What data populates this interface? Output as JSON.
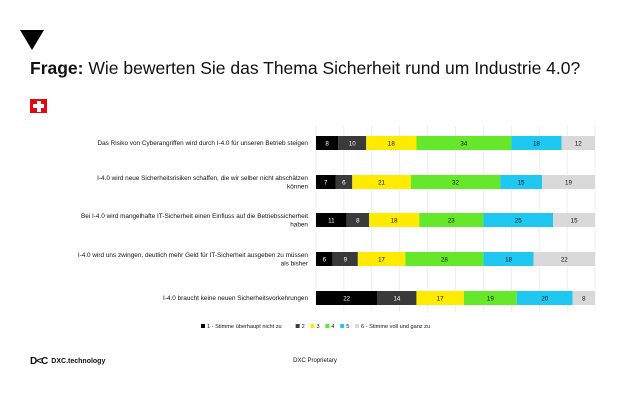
{
  "header": {
    "question_label": "Frage:",
    "question_text": "Wie bewerten Sie das Thema Sicherheit rund um Industrie 4.0?"
  },
  "footer": {
    "logo_mark": "D<C",
    "brand": "DXC.technology",
    "center_text": "DXC Proprietary"
  },
  "icons": {
    "marker": "down-triangle-icon",
    "flag": "swiss-flag-icon"
  },
  "chart_data": {
    "type": "bar",
    "orientation": "horizontal",
    "stacked": true,
    "normalized": true,
    "xlim": [
      0,
      100
    ],
    "categories": [
      [
        "Das Risiko von Cyberangriffen wird durch I-4.0 für unseren Betrieb steigen"
      ],
      [
        "I-4.0 wird neue Sicherheitsrisiken schaffen, die wir selber nicht abschätzen",
        "können"
      ],
      [
        "Bei I-4.0 wird mangelhafte IT-Sicherheit einen Einfluss auf die Betriebssicherheit",
        "haben"
      ],
      [
        "I-4.0 wird uns zwingen, deutlich mehr Geld für IT-Sicherheit ausgeben zu müssen",
        "als bisher"
      ],
      [
        "I-4.0 braucht keine neuen Sicherheitsvorkehrungen"
      ]
    ],
    "series": [
      {
        "name": "1 - Stimme überhaupt nicht zu",
        "color": "#000000",
        "label_color": "#ffffff",
        "values": [
          8,
          7,
          11,
          6,
          22
        ]
      },
      {
        "name": "2",
        "color": "#3a3a3a",
        "label_color": "#ffffff",
        "values": [
          10,
          6,
          8,
          9,
          14
        ]
      },
      {
        "name": "3",
        "color": "#ffeb00",
        "label_color": "#111111",
        "values": [
          18,
          21,
          18,
          17,
          17
        ]
      },
      {
        "name": "4",
        "color": "#66e82a",
        "label_color": "#111111",
        "values": [
          34,
          32,
          23,
          28,
          19
        ]
      },
      {
        "name": "5",
        "color": "#1ec8f0",
        "label_color": "#111111",
        "values": [
          18,
          15,
          25,
          18,
          20
        ]
      },
      {
        "name": "6 - Stimme voll und ganz zu",
        "color": "#d9d9d9",
        "label_color": "#111111",
        "values": [
          12,
          19,
          15,
          22,
          8
        ]
      }
    ],
    "legend_position": "bottom"
  }
}
